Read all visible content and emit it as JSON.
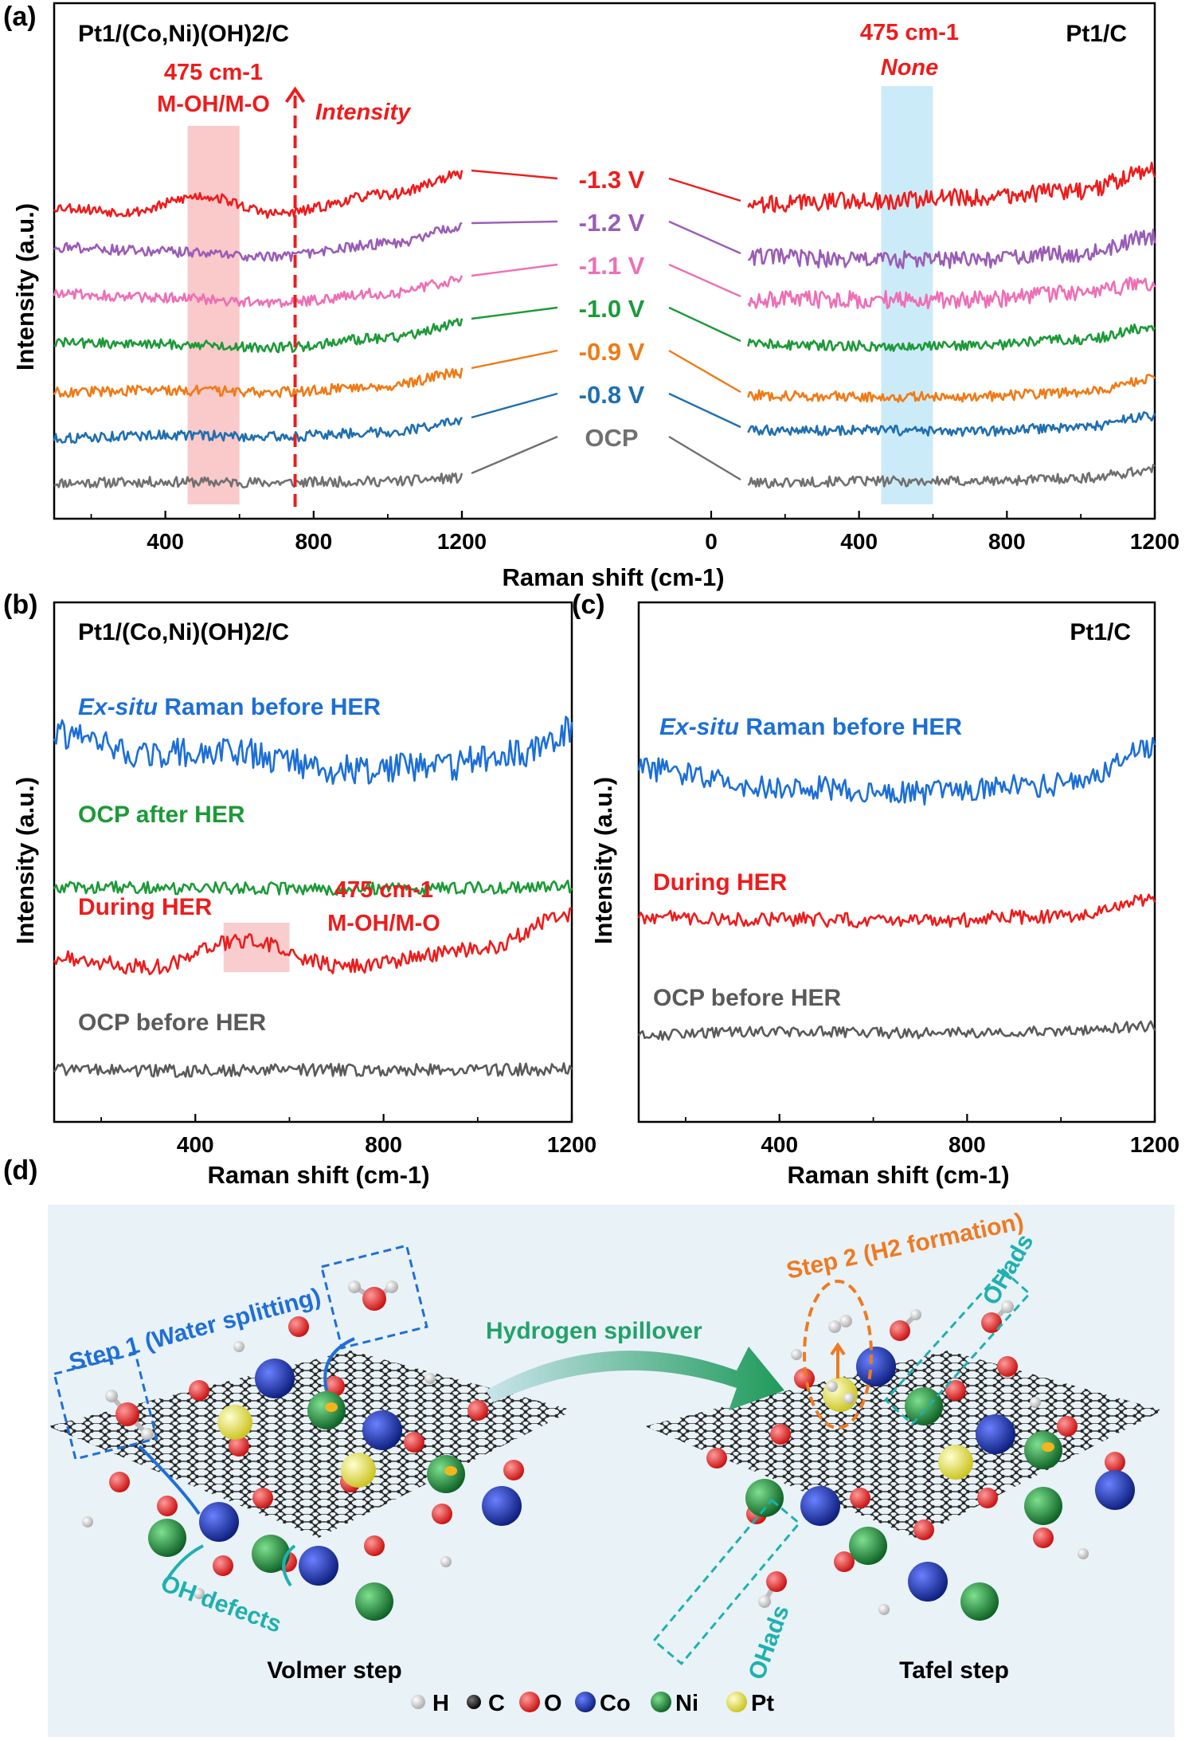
{
  "figure": {
    "panel_a_letter": "(a)",
    "panel_b_letter": "(b)",
    "panel_c_letter": "(c)",
    "panel_d_letter": "(d)"
  },
  "chart_data": [
    {
      "id": "a-left",
      "type": "line",
      "title": "Pt1/(Co,Ni)(OH)2/C",
      "xlabel": "Raman shift (cm-1)",
      "ylabel": "Intensity (a.u.)",
      "xlim": [
        100,
        1200
      ],
      "xticks": [
        400,
        800,
        1200
      ],
      "grid": false,
      "highlight_band": [
        460,
        600
      ],
      "highlight_color": "#f8b7b7",
      "annotations": {
        "peak": "475 cm-1",
        "assignment": "M-OH/M-O",
        "arrow_label": "Intensity",
        "arrow_x": 750
      },
      "series": [
        {
          "label": "OCP",
          "color": "#707070",
          "offset": 0,
          "points": [
            [
              100,
              0.05
            ],
            [
              400,
              0.08
            ],
            [
              700,
              0.06
            ],
            [
              1000,
              0.1
            ],
            [
              1200,
              0.2
            ]
          ]
        },
        {
          "label": "-0.8 V",
          "color": "#1f6fb0",
          "offset": 1,
          "points": [
            [
              100,
              0.1
            ],
            [
              400,
              0.2
            ],
            [
              700,
              0.15
            ],
            [
              1000,
              0.3
            ],
            [
              1200,
              0.6
            ]
          ]
        },
        {
          "label": "-0.9 V",
          "color": "#f07a16",
          "offset": 2,
          "points": [
            [
              100,
              0.2
            ],
            [
              400,
              0.25
            ],
            [
              700,
              0.2
            ],
            [
              1000,
              0.4
            ],
            [
              1200,
              0.8
            ]
          ]
        },
        {
          "label": "-1.0 V",
          "color": "#1c9a38",
          "offset": 3,
          "points": [
            [
              100,
              0.4
            ],
            [
              400,
              0.35
            ],
            [
              700,
              0.25
            ],
            [
              1000,
              0.55
            ],
            [
              1200,
              1.0
            ]
          ]
        },
        {
          "label": "-1.1 V",
          "color": "#ee6fb6",
          "offset": 4,
          "points": [
            [
              100,
              0.6
            ],
            [
              400,
              0.45
            ],
            [
              700,
              0.3
            ],
            [
              1000,
              0.6
            ],
            [
              1200,
              1.0
            ]
          ]
        },
        {
          "label": "-1.2 V",
          "color": "#9a5cb6",
          "offset": 5,
          "points": [
            [
              100,
              0.7
            ],
            [
              400,
              0.55
            ],
            [
              700,
              0.4
            ],
            [
              1000,
              0.8
            ],
            [
              1200,
              1.3
            ]
          ]
        },
        {
          "label": "-1.3 V",
          "color": "#ee1c1c",
          "offset": 6,
          "points": [
            [
              100,
              0.6
            ],
            [
              300,
              0.45
            ],
            [
              500,
              0.95
            ],
            [
              700,
              0.4
            ],
            [
              1000,
              1.0
            ],
            [
              1200,
              1.6
            ]
          ]
        }
      ]
    },
    {
      "id": "a-right",
      "type": "line",
      "title": "Pt1/C",
      "xlabel": "Raman shift (cm-1)",
      "ylabel": "",
      "xlim": [
        0,
        1200
      ],
      "xticks": [
        0,
        400,
        800,
        1200
      ],
      "grid": false,
      "highlight_band": [
        460,
        600
      ],
      "highlight_color": "#bfe6f6",
      "annotations": {
        "peak": "475 cm-1",
        "assignment": "None"
      },
      "series": [
        {
          "label": "OCP",
          "color": "#707070",
          "offset": 0,
          "points": [
            [
              100,
              0.05
            ],
            [
              400,
              0.1
            ],
            [
              700,
              0.1
            ],
            [
              1000,
              0.2
            ],
            [
              1200,
              0.45
            ]
          ]
        },
        {
          "label": "-0.8 V",
          "color": "#1f6fb0",
          "offset": 1,
          "points": [
            [
              100,
              0.35
            ],
            [
              400,
              0.35
            ],
            [
              700,
              0.3
            ],
            [
              1000,
              0.45
            ],
            [
              1200,
              0.8
            ]
          ]
        },
        {
          "label": "-0.9 V",
          "color": "#f07a16",
          "offset": 2,
          "points": [
            [
              100,
              0.1
            ],
            [
              400,
              0.05
            ],
            [
              700,
              0.05
            ],
            [
              1000,
              0.2
            ],
            [
              1200,
              0.6
            ]
          ]
        },
        {
          "label": "-1.0 V",
          "color": "#1c9a38",
          "offset": 3,
          "points": [
            [
              100,
              0.35
            ],
            [
              400,
              0.3
            ],
            [
              700,
              0.3
            ],
            [
              1000,
              0.5
            ],
            [
              1200,
              0.9
            ]
          ]
        },
        {
          "label": "-1.1 V",
          "color": "#ee6fb6",
          "offset": 4,
          "points": [
            [
              100,
              0.4
            ],
            [
              400,
              0.4
            ],
            [
              700,
              0.4
            ],
            [
              1000,
              0.6
            ],
            [
              1200,
              0.9
            ]
          ]
        },
        {
          "label": "-1.2 V",
          "color": "#9a5cb6",
          "offset": 5,
          "points": [
            [
              100,
              0.4
            ],
            [
              400,
              0.3
            ],
            [
              700,
              0.3
            ],
            [
              1000,
              0.5
            ],
            [
              1200,
              1.0
            ]
          ]
        },
        {
          "label": "-1.3 V",
          "color": "#ee1c1c",
          "offset": 6,
          "points": [
            [
              100,
              0.7
            ],
            [
              400,
              0.8
            ],
            [
              700,
              0.9
            ],
            [
              1000,
              1.1
            ],
            [
              1200,
              1.8
            ]
          ]
        }
      ]
    },
    {
      "id": "b",
      "type": "line",
      "title": "Pt1/(Co,Ni)(OH)2/C",
      "xlabel": "Raman shift (cm-1)",
      "ylabel": "Intensity (a.u.)",
      "xlim": [
        100,
        1200
      ],
      "xticks": [
        400,
        800,
        1200
      ],
      "grid": false,
      "highlight_band": [
        460,
        600
      ],
      "highlight_color": "#f8c0c0",
      "annotations": {
        "peak": "475 cm-1",
        "assignment": "M-OH/M-O"
      },
      "series": [
        {
          "label": "OCP before HER",
          "color": "#5a5a5a",
          "offset": 0,
          "points": [
            [
              100,
              0.1
            ],
            [
              400,
              0.05
            ],
            [
              700,
              0.1
            ],
            [
              1000,
              0.1
            ],
            [
              1200,
              0.15
            ]
          ]
        },
        {
          "label": "During HER",
          "color": "#ee1c1c",
          "offset": 1,
          "points": [
            [
              100,
              0.5
            ],
            [
              300,
              0.3
            ],
            [
              500,
              0.9
            ],
            [
              720,
              0.3
            ],
            [
              1000,
              0.7
            ],
            [
              1200,
              1.5
            ]
          ]
        },
        {
          "label": "OCP after HER",
          "color": "#1c9a38",
          "offset": 2,
          "points": [
            [
              100,
              0.3
            ],
            [
              400,
              0.25
            ],
            [
              700,
              0.2
            ],
            [
              1000,
              0.25
            ],
            [
              1200,
              0.35
            ]
          ]
        },
        {
          "label": "Ex-situ Raman before HER",
          "color": "#1c6fd6",
          "offset": 3,
          "points": [
            [
              100,
              1.2
            ],
            [
              300,
              0.75
            ],
            [
              480,
              0.8
            ],
            [
              700,
              0.4
            ],
            [
              900,
              0.45
            ],
            [
              1100,
              0.8
            ],
            [
              1200,
              1.3
            ]
          ]
        }
      ]
    },
    {
      "id": "c",
      "type": "line",
      "title": "Pt1/C",
      "xlabel": "Raman shift (cm-1)",
      "ylabel": "Intensity (a.u.)",
      "xlim": [
        100,
        1200
      ],
      "xticks": [
        400,
        800,
        1200
      ],
      "grid": false,
      "series": [
        {
          "label": "OCP before HER",
          "color": "#5a5a5a",
          "offset": 0,
          "points": [
            [
              100,
              0.05
            ],
            [
              400,
              0.25
            ],
            [
              700,
              0.15
            ],
            [
              1000,
              0.3
            ],
            [
              1200,
              0.55
            ]
          ]
        },
        {
          "label": "During HER",
          "color": "#ee1c1c",
          "offset": 1,
          "points": [
            [
              100,
              0.3
            ],
            [
              400,
              0.2
            ],
            [
              700,
              0.15
            ],
            [
              1000,
              0.35
            ],
            [
              1200,
              1.0
            ]
          ]
        },
        {
          "label": "Ex-situ Raman before HER",
          "color": "#1c6fd6",
          "offset": 2,
          "points": [
            [
              100,
              0.9
            ],
            [
              400,
              0.45
            ],
            [
              700,
              0.3
            ],
            [
              1000,
              0.5
            ],
            [
              1200,
              1.4
            ]
          ]
        }
      ]
    }
  ],
  "panel_d": {
    "step1": "Step 1 (Water splitting)",
    "step2": "Step 2 (H2 formation)",
    "spillover": "Hydrogen spillover",
    "oh_defects": "OH defects",
    "oh_ads": "OHads",
    "volmer": "Volmer step",
    "tafel": "Tafel step",
    "legend": [
      {
        "symbol": "H",
        "color": "#f2f2f2"
      },
      {
        "symbol": "C",
        "color": "#111111"
      },
      {
        "symbol": "O",
        "color": "#e21b1b"
      },
      {
        "symbol": "Co",
        "color": "#1a33a8"
      },
      {
        "symbol": "Ni",
        "color": "#1c8a3c"
      },
      {
        "symbol": "Pt",
        "color": "#ecec3a"
      }
    ]
  }
}
